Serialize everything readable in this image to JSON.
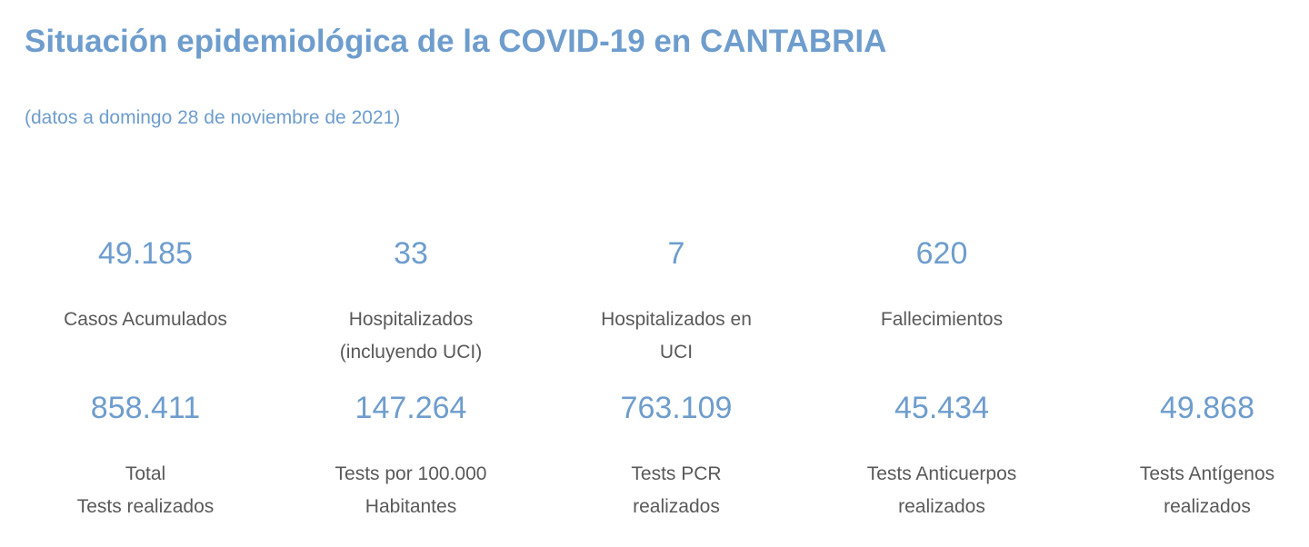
{
  "header": {
    "title": "Situación epidemiológica de la COVID-19 en CANTABRIA",
    "subtitle": "(datos a domingo 28 de noviembre de 2021)"
  },
  "colors": {
    "accent_blue": "#6E9DCD",
    "label_gray": "#595959",
    "background": "#FFFFFF"
  },
  "stats_rows": [
    {
      "items": [
        {
          "value": "49.185",
          "label_lines": [
            "Casos Acumulados"
          ]
        },
        {
          "value": "33",
          "label_lines": [
            "Hospitalizados",
            "(incluyendo UCI)"
          ]
        },
        {
          "value": "7",
          "label_lines": [
            "Hospitalizados en",
            "UCI"
          ]
        },
        {
          "value": "620",
          "label_lines": [
            "Fallecimientos"
          ]
        }
      ]
    },
    {
      "items": [
        {
          "value": "858.411",
          "label_lines": [
            "Total",
            "Tests realizados"
          ]
        },
        {
          "value": "147.264",
          "label_lines": [
            "Tests por 100.000",
            "Habitantes"
          ]
        },
        {
          "value": "763.109",
          "label_lines": [
            "Tests PCR",
            "realizados"
          ]
        },
        {
          "value": "45.434",
          "label_lines": [
            "Tests Anticuerpos",
            "realizados"
          ]
        },
        {
          "value": "49.868",
          "label_lines": [
            "Tests Antígenos",
            "realizados"
          ]
        }
      ]
    }
  ]
}
